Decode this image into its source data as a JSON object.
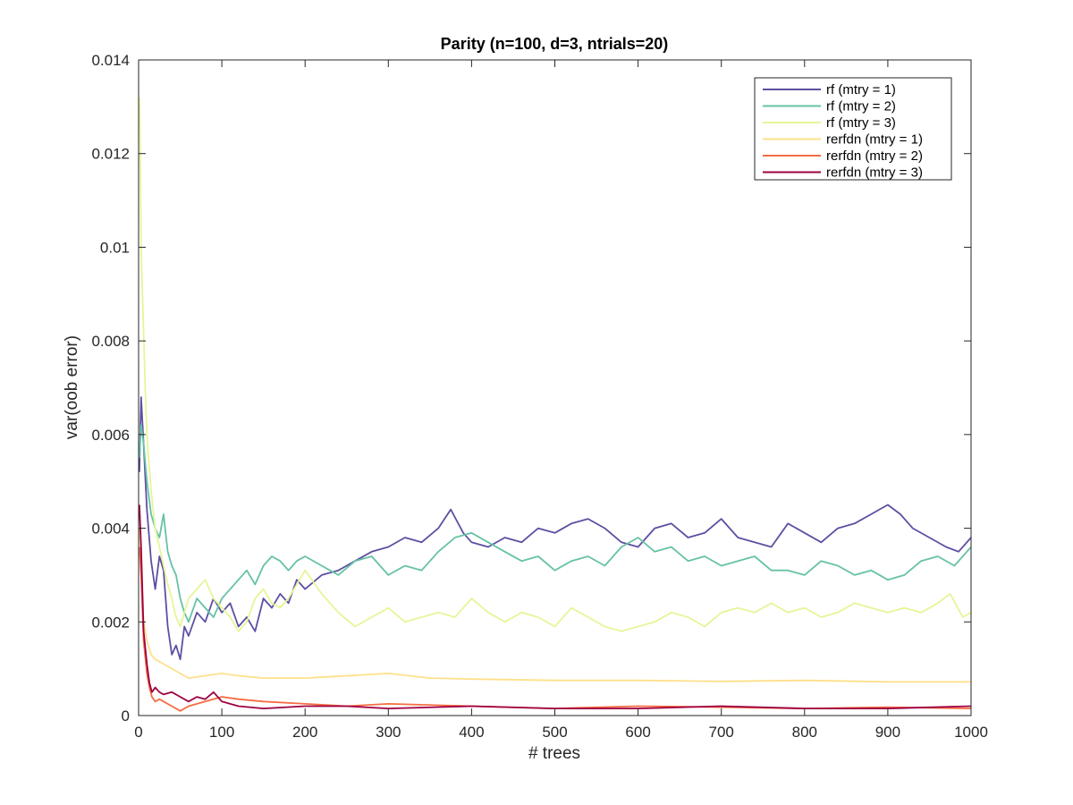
{
  "chart_data": {
    "type": "line",
    "title": "Parity (n=100, d=3, ntrials=20)",
    "xlabel": "# trees",
    "ylabel": "var(oob error)",
    "xlim": [
      0,
      1000
    ],
    "ylim": [
      0,
      0.014
    ],
    "xticks": [
      0,
      100,
      200,
      300,
      400,
      500,
      600,
      700,
      800,
      900,
      1000
    ],
    "yticks": [
      0,
      0.002,
      0.004,
      0.006,
      0.008,
      0.01,
      0.012,
      0.014
    ],
    "xtick_labels": [
      "0",
      "100",
      "200",
      "300",
      "400",
      "500",
      "600",
      "700",
      "800",
      "900",
      "1000"
    ],
    "ytick_labels": [
      "0",
      "0.002",
      "0.004",
      "0.006",
      "0.008",
      "0.01",
      "0.012",
      "0.014"
    ],
    "grid": false,
    "legend_position": "top-right",
    "series": [
      {
        "name": "rf (mtry = 1)",
        "color": "#5e4fa2",
        "x": [
          1,
          3,
          6,
          10,
          15,
          20,
          25,
          30,
          35,
          40,
          45,
          50,
          55,
          60,
          70,
          80,
          90,
          100,
          110,
          120,
          130,
          140,
          150,
          160,
          170,
          180,
          190,
          200,
          220,
          240,
          260,
          280,
          300,
          320,
          340,
          360,
          375,
          390,
          400,
          420,
          440,
          460,
          480,
          500,
          520,
          540,
          560,
          580,
          600,
          620,
          640,
          660,
          680,
          700,
          720,
          740,
          760,
          780,
          800,
          820,
          840,
          860,
          880,
          900,
          915,
          930,
          950,
          970,
          985,
          1000
        ],
        "y": [
          0.0052,
          0.0068,
          0.0058,
          0.0044,
          0.0033,
          0.0027,
          0.0034,
          0.0031,
          0.0019,
          0.0013,
          0.0015,
          0.0012,
          0.0019,
          0.0017,
          0.0022,
          0.002,
          0.0025,
          0.0022,
          0.0024,
          0.0019,
          0.0021,
          0.0018,
          0.0025,
          0.0023,
          0.0026,
          0.0024,
          0.0029,
          0.0027,
          0.003,
          0.0031,
          0.0033,
          0.0035,
          0.0036,
          0.0038,
          0.0037,
          0.004,
          0.0044,
          0.0039,
          0.0037,
          0.0036,
          0.0038,
          0.0037,
          0.004,
          0.0039,
          0.0041,
          0.0042,
          0.004,
          0.0037,
          0.0036,
          0.004,
          0.0041,
          0.0038,
          0.0039,
          0.0042,
          0.0038,
          0.0037,
          0.0036,
          0.0041,
          0.0039,
          0.0037,
          0.004,
          0.0041,
          0.0043,
          0.0045,
          0.0043,
          0.004,
          0.0038,
          0.0036,
          0.0035,
          0.0038
        ]
      },
      {
        "name": "rf (mtry = 2)",
        "color": "#66c2a5",
        "x": [
          1,
          3,
          6,
          10,
          15,
          20,
          25,
          30,
          35,
          40,
          45,
          50,
          55,
          60,
          70,
          80,
          90,
          100,
          110,
          120,
          130,
          140,
          150,
          160,
          170,
          180,
          190,
          200,
          220,
          240,
          260,
          280,
          300,
          320,
          340,
          360,
          380,
          400,
          420,
          440,
          460,
          480,
          500,
          520,
          540,
          560,
          580,
          600,
          620,
          640,
          660,
          680,
          700,
          720,
          740,
          760,
          780,
          800,
          820,
          840,
          860,
          880,
          900,
          920,
          940,
          960,
          980,
          1000
        ],
        "y": [
          0.0055,
          0.0062,
          0.0058,
          0.005,
          0.0043,
          0.004,
          0.0038,
          0.0043,
          0.0035,
          0.0032,
          0.003,
          0.0025,
          0.0022,
          0.002,
          0.0025,
          0.0023,
          0.0021,
          0.0025,
          0.0027,
          0.0029,
          0.0031,
          0.0028,
          0.0032,
          0.0034,
          0.0033,
          0.0031,
          0.0033,
          0.0034,
          0.0032,
          0.003,
          0.0033,
          0.0034,
          0.003,
          0.0032,
          0.0031,
          0.0035,
          0.0038,
          0.0039,
          0.0037,
          0.0035,
          0.0033,
          0.0034,
          0.0031,
          0.0033,
          0.0034,
          0.0032,
          0.0036,
          0.0038,
          0.0035,
          0.0036,
          0.0033,
          0.0034,
          0.0032,
          0.0033,
          0.0034,
          0.0031,
          0.0031,
          0.003,
          0.0033,
          0.0032,
          0.003,
          0.0031,
          0.0029,
          0.003,
          0.0033,
          0.0034,
          0.0032,
          0.0036
        ]
      },
      {
        "name": "rf (mtry = 3)",
        "color": "#e6f598",
        "x": [
          1,
          2,
          3,
          4,
          6,
          8,
          10,
          12,
          15,
          18,
          20,
          25,
          30,
          35,
          40,
          45,
          50,
          55,
          60,
          70,
          80,
          90,
          100,
          110,
          120,
          130,
          140,
          150,
          160,
          170,
          180,
          190,
          200,
          220,
          240,
          260,
          280,
          300,
          320,
          340,
          360,
          380,
          400,
          420,
          440,
          460,
          480,
          500,
          520,
          540,
          560,
          580,
          600,
          620,
          640,
          660,
          680,
          700,
          720,
          740,
          760,
          780,
          800,
          820,
          840,
          860,
          880,
          900,
          920,
          940,
          960,
          975,
          990,
          1000
        ],
        "y": [
          0.0132,
          0.012,
          0.01,
          0.0094,
          0.0082,
          0.007,
          0.006,
          0.0055,
          0.0048,
          0.0043,
          0.004,
          0.0036,
          0.0032,
          0.0028,
          0.0025,
          0.0021,
          0.0019,
          0.0022,
          0.0025,
          0.0027,
          0.0029,
          0.0025,
          0.0023,
          0.0021,
          0.0018,
          0.002,
          0.0025,
          0.0027,
          0.0024,
          0.0023,
          0.0025,
          0.0028,
          0.0031,
          0.0026,
          0.0022,
          0.0019,
          0.0021,
          0.0023,
          0.002,
          0.0021,
          0.0022,
          0.0021,
          0.0025,
          0.0022,
          0.002,
          0.0022,
          0.0021,
          0.0019,
          0.0023,
          0.0021,
          0.0019,
          0.0018,
          0.0019,
          0.002,
          0.0022,
          0.0021,
          0.0019,
          0.0022,
          0.0023,
          0.0022,
          0.0024,
          0.0022,
          0.0023,
          0.0021,
          0.0022,
          0.0024,
          0.0023,
          0.0022,
          0.0023,
          0.0022,
          0.0024,
          0.0026,
          0.0021,
          0.0022
        ]
      },
      {
        "name": "rerfdn (mtry = 1)",
        "color": "#fee08b",
        "x": [
          1,
          3,
          6,
          10,
          15,
          20,
          25,
          30,
          40,
          50,
          60,
          80,
          100,
          120,
          150,
          200,
          250,
          300,
          350,
          400,
          500,
          600,
          700,
          800,
          900,
          1000
        ],
        "y": [
          0.004,
          0.0032,
          0.002,
          0.0016,
          0.0013,
          0.0012,
          0.00115,
          0.0011,
          0.001,
          0.0009,
          0.0008,
          0.00085,
          0.0009,
          0.00085,
          0.0008,
          0.0008,
          0.00085,
          0.0009,
          0.0008,
          0.00078,
          0.00075,
          0.00075,
          0.00073,
          0.00075,
          0.00072,
          0.00072
        ]
      },
      {
        "name": "rerfdn (mtry = 2)",
        "color": "#f46d43",
        "x": [
          1,
          3,
          6,
          10,
          13,
          16,
          20,
          25,
          30,
          40,
          50,
          60,
          80,
          100,
          120,
          150,
          200,
          250,
          300,
          400,
          500,
          600,
          700,
          800,
          900,
          1000
        ],
        "y": [
          0.0036,
          0.003,
          0.0016,
          0.0009,
          0.0006,
          0.0004,
          0.0003,
          0.00035,
          0.0003,
          0.0002,
          0.0001,
          0.0002,
          0.0003,
          0.0004,
          0.00035,
          0.0003,
          0.00025,
          0.0002,
          0.00025,
          0.0002,
          0.00015,
          0.0002,
          0.00018,
          0.00015,
          0.00018,
          0.00015
        ]
      },
      {
        "name": "rerfdn (mtry = 3)",
        "color": "#9e0142",
        "x": [
          1,
          3,
          6,
          10,
          13,
          16,
          20,
          25,
          30,
          40,
          50,
          60,
          70,
          80,
          90,
          100,
          120,
          150,
          200,
          250,
          300,
          400,
          500,
          600,
          700,
          800,
          900,
          1000
        ],
        "y": [
          0.0045,
          0.0036,
          0.0018,
          0.0011,
          0.0007,
          0.0005,
          0.0006,
          0.0005,
          0.00045,
          0.0005,
          0.0004,
          0.0003,
          0.0004,
          0.00035,
          0.0005,
          0.0003,
          0.0002,
          0.00015,
          0.0002,
          0.0002,
          0.00015,
          0.0002,
          0.00015,
          0.00015,
          0.0002,
          0.00015,
          0.00015,
          0.0002
        ]
      }
    ]
  }
}
